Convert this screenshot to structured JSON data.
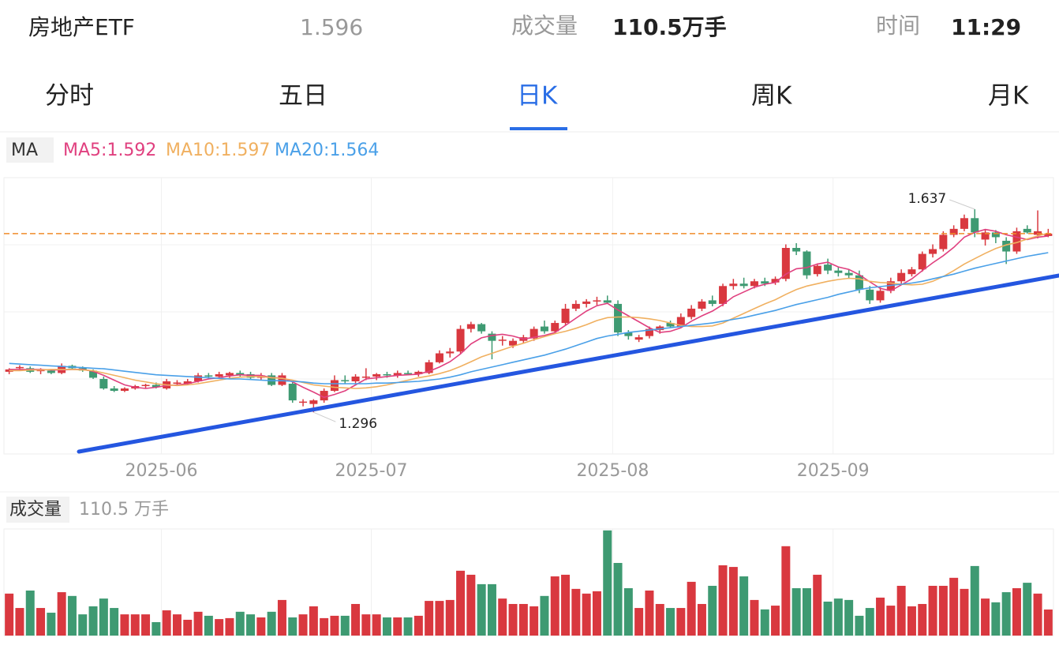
{
  "header": {
    "name": "房地产ETF",
    "label_volume": "成交量",
    "volume": "110.5万手",
    "label_time": "时间",
    "time": "11:29"
  },
  "tabs": {
    "items": [
      "分时",
      "五日",
      "日K",
      "周K",
      "月K"
    ],
    "active": 2
  },
  "chart_data": {
    "type": "candlestick",
    "ma_label": "MA",
    "xlim": [
      -0.5,
      99.5
    ],
    "xticks": [
      {
        "value": 14.5,
        "label": "2025-06"
      },
      {
        "value": 34.5,
        "label": "2025-07"
      },
      {
        "value": 57.5,
        "label": "2025-08"
      },
      {
        "value": 78.5,
        "label": "2025-09"
      }
    ],
    "ylim": [
      1.226,
      1.69
    ],
    "current_price": 1.596,
    "up_color": "#d9383f",
    "down_color": "#3e9a72",
    "price_line_color": "#f08c2a",
    "open": [
      1.364,
      1.37,
      1.37,
      1.365,
      1.366,
      1.362,
      1.374,
      1.37,
      1.366,
      1.352,
      1.336,
      1.332,
      1.336,
      1.34,
      1.342,
      1.336,
      1.344,
      1.344,
      1.348,
      1.358,
      1.356,
      1.358,
      1.362,
      1.36,
      1.354,
      1.358,
      1.342,
      1.344,
      1.312,
      1.31,
      1.316,
      1.332,
      1.35,
      1.348,
      1.354,
      1.356,
      1.36,
      1.358,
      1.362,
      1.36,
      1.362,
      1.38,
      1.395,
      1.398,
      1.436,
      1.444,
      1.428,
      1.416,
      1.408,
      1.416,
      1.42,
      1.44,
      1.432,
      1.446,
      1.47,
      1.478,
      1.482,
      1.484,
      1.478,
      1.43,
      1.418,
      1.424,
      1.434,
      1.446,
      1.44,
      1.456,
      1.47,
      1.484,
      1.478,
      1.508,
      1.512,
      1.508,
      1.516,
      1.514,
      1.52,
      1.572,
      1.566,
      1.528,
      1.544,
      1.534,
      1.53,
      1.526,
      1.502,
      1.484,
      1.5,
      1.516,
      1.528,
      1.536,
      1.562,
      1.57,
      1.594,
      1.604,
      1.622,
      1.586,
      1.598,
      1.584,
      1.566,
      1.604,
      1.594,
      1.592
    ],
    "high": [
      1.37,
      1.375,
      1.373,
      1.37,
      1.368,
      1.378,
      1.376,
      1.373,
      1.368,
      1.356,
      1.34,
      1.338,
      1.342,
      1.344,
      1.346,
      1.352,
      1.35,
      1.352,
      1.362,
      1.362,
      1.364,
      1.364,
      1.366,
      1.364,
      1.362,
      1.362,
      1.362,
      1.348,
      1.318,
      1.318,
      1.336,
      1.358,
      1.358,
      1.36,
      1.37,
      1.362,
      1.364,
      1.366,
      1.366,
      1.366,
      1.384,
      1.4,
      1.404,
      1.442,
      1.448,
      1.446,
      1.432,
      1.424,
      1.42,
      1.426,
      1.44,
      1.45,
      1.45,
      1.478,
      1.484,
      1.486,
      1.49,
      1.492,
      1.484,
      1.434,
      1.426,
      1.44,
      1.442,
      1.45,
      1.462,
      1.476,
      1.486,
      1.492,
      1.512,
      1.52,
      1.522,
      1.52,
      1.522,
      1.524,
      1.578,
      1.58,
      1.568,
      1.546,
      1.554,
      1.54,
      1.536,
      1.534,
      1.508,
      1.506,
      1.522,
      1.536,
      1.54,
      1.566,
      1.578,
      1.6,
      1.61,
      1.628,
      1.637,
      1.602,
      1.602,
      1.59,
      1.606,
      1.61,
      1.635,
      1.604
    ],
    "low": [
      1.36,
      1.366,
      1.362,
      1.36,
      1.36,
      1.36,
      1.368,
      1.364,
      1.352,
      1.334,
      1.33,
      1.33,
      1.334,
      1.336,
      1.336,
      1.334,
      1.34,
      1.342,
      1.346,
      1.352,
      1.352,
      1.354,
      1.356,
      1.352,
      1.35,
      1.34,
      1.34,
      1.312,
      1.306,
      1.296,
      1.312,
      1.33,
      1.344,
      1.344,
      1.35,
      1.35,
      1.354,
      1.354,
      1.358,
      1.356,
      1.36,
      1.378,
      1.388,
      1.394,
      1.43,
      1.428,
      1.385,
      1.408,
      1.404,
      1.412,
      1.416,
      1.428,
      1.428,
      1.442,
      1.466,
      1.472,
      1.476,
      1.478,
      1.424,
      1.418,
      1.414,
      1.42,
      1.428,
      1.438,
      1.438,
      1.452,
      1.466,
      1.474,
      1.474,
      1.502,
      1.504,
      1.504,
      1.508,
      1.51,
      1.516,
      1.56,
      1.52,
      1.524,
      1.528,
      1.524,
      1.52,
      1.496,
      1.478,
      1.48,
      1.496,
      1.512,
      1.524,
      1.532,
      1.556,
      1.566,
      1.59,
      1.6,
      1.59,
      1.576,
      1.58,
      1.545,
      1.562,
      1.596,
      1.588,
      1.59
    ],
    "close": [
      1.368,
      1.372,
      1.364,
      1.367,
      1.362,
      1.374,
      1.37,
      1.366,
      1.354,
      1.336,
      1.332,
      1.336,
      1.34,
      1.342,
      1.338,
      1.348,
      1.346,
      1.348,
      1.358,
      1.356,
      1.36,
      1.362,
      1.358,
      1.354,
      1.358,
      1.342,
      1.358,
      1.316,
      1.314,
      1.316,
      1.332,
      1.35,
      1.348,
      1.356,
      1.356,
      1.36,
      1.358,
      1.362,
      1.36,
      1.364,
      1.38,
      1.395,
      1.398,
      1.436,
      1.444,
      1.432,
      1.416,
      1.418,
      1.416,
      1.422,
      1.436,
      1.432,
      1.446,
      1.47,
      1.478,
      1.482,
      1.484,
      1.48,
      1.43,
      1.424,
      1.422,
      1.436,
      1.44,
      1.44,
      1.456,
      1.47,
      1.482,
      1.478,
      1.508,
      1.512,
      1.508,
      1.516,
      1.512,
      1.52,
      1.572,
      1.566,
      1.526,
      1.542,
      1.534,
      1.53,
      1.526,
      1.502,
      1.484,
      1.5,
      1.516,
      1.53,
      1.536,
      1.562,
      1.57,
      1.594,
      1.604,
      1.622,
      1.598,
      1.598,
      1.59,
      1.566,
      1.6,
      1.598,
      1.6,
      1.596
    ],
    "ma": [
      {
        "name": "MA5:1.592",
        "color": "#e0407f",
        "values": [
          1.368,
          1.368,
          1.368,
          1.368,
          1.367,
          1.367,
          1.368,
          1.368,
          1.365,
          1.358,
          1.35,
          1.342,
          1.338,
          1.336,
          1.338,
          1.341,
          1.342,
          1.344,
          1.348,
          1.352,
          1.354,
          1.357,
          1.359,
          1.358,
          1.358,
          1.354,
          1.354,
          1.347,
          1.338,
          1.33,
          1.321,
          1.326,
          1.332,
          1.342,
          1.352,
          1.354,
          1.356,
          1.358,
          1.359,
          1.36,
          1.365,
          1.372,
          1.381,
          1.394,
          1.411,
          1.421,
          1.425,
          1.427,
          1.424,
          1.419,
          1.422,
          1.425,
          1.43,
          1.442,
          1.454,
          1.466,
          1.475,
          1.479,
          1.468,
          1.458,
          1.448,
          1.438,
          1.43,
          1.432,
          1.438,
          1.449,
          1.458,
          1.466,
          1.477,
          1.49,
          1.498,
          1.506,
          1.511,
          1.514,
          1.528,
          1.537,
          1.539,
          1.545,
          1.548,
          1.54,
          1.536,
          1.527,
          1.515,
          1.504,
          1.5,
          1.51,
          1.52,
          1.534,
          1.547,
          1.559,
          1.573,
          1.59,
          1.598,
          1.603,
          1.6,
          1.594,
          1.59,
          1.586,
          1.59,
          1.592
        ]
      },
      {
        "name": "MA10:1.597",
        "color": "#f0b060",
        "values": [
          1.366,
          1.366,
          1.367,
          1.367,
          1.368,
          1.368,
          1.368,
          1.367,
          1.366,
          1.362,
          1.358,
          1.354,
          1.35,
          1.347,
          1.344,
          1.342,
          1.341,
          1.342,
          1.344,
          1.347,
          1.35,
          1.353,
          1.355,
          1.356,
          1.356,
          1.354,
          1.353,
          1.35,
          1.346,
          1.342,
          1.34,
          1.338,
          1.337,
          1.336,
          1.337,
          1.339,
          1.342,
          1.346,
          1.35,
          1.354,
          1.357,
          1.361,
          1.366,
          1.373,
          1.381,
          1.389,
          1.395,
          1.401,
          1.407,
          1.412,
          1.418,
          1.423,
          1.428,
          1.432,
          1.437,
          1.443,
          1.45,
          1.455,
          1.456,
          1.456,
          1.455,
          1.453,
          1.45,
          1.446,
          1.442,
          1.44,
          1.44,
          1.441,
          1.446,
          1.454,
          1.462,
          1.47,
          1.478,
          1.485,
          1.494,
          1.502,
          1.508,
          1.512,
          1.516,
          1.519,
          1.521,
          1.52,
          1.516,
          1.514,
          1.513,
          1.511,
          1.51,
          1.511,
          1.516,
          1.524,
          1.534,
          1.545,
          1.554,
          1.563,
          1.571,
          1.577,
          1.581,
          1.587,
          1.592,
          1.597
        ]
      },
      {
        "name": "MA20:1.564",
        "color": "#4aa0e8",
        "values": [
          1.378,
          1.377,
          1.376,
          1.375,
          1.374,
          1.373,
          1.372,
          1.371,
          1.37,
          1.369,
          1.367,
          1.365,
          1.363,
          1.361,
          1.359,
          1.358,
          1.357,
          1.356,
          1.355,
          1.354,
          1.353,
          1.352,
          1.352,
          1.351,
          1.35,
          1.349,
          1.349,
          1.348,
          1.347,
          1.345,
          1.344,
          1.344,
          1.344,
          1.344,
          1.344,
          1.345,
          1.345,
          1.346,
          1.347,
          1.348,
          1.35,
          1.352,
          1.355,
          1.359,
          1.364,
          1.368,
          1.372,
          1.376,
          1.38,
          1.384,
          1.388,
          1.392,
          1.397,
          1.402,
          1.408,
          1.414,
          1.42,
          1.424,
          1.427,
          1.43,
          1.432,
          1.434,
          1.436,
          1.438,
          1.44,
          1.442,
          1.444,
          1.446,
          1.449,
          1.452,
          1.455,
          1.459,
          1.463,
          1.467,
          1.472,
          1.477,
          1.481,
          1.485,
          1.489,
          1.494,
          1.498,
          1.502,
          1.505,
          1.507,
          1.509,
          1.511,
          1.513,
          1.516,
          1.52,
          1.524,
          1.528,
          1.533,
          1.538,
          1.542,
          1.546,
          1.55,
          1.554,
          1.558,
          1.561,
          1.564
        ]
      }
    ],
    "volume": {
      "label": "成交量",
      "current": "110.5 万手",
      "ylim": [
        0,
        452
      ],
      "values": [
        178,
        117,
        191,
        117,
        97,
        184,
        168,
        90,
        124,
        157,
        117,
        90,
        90,
        90,
        57,
        107,
        90,
        67,
        101,
        84,
        70,
        74,
        101,
        90,
        77,
        101,
        151,
        77,
        90,
        124,
        74,
        84,
        84,
        134,
        90,
        90,
        77,
        77,
        77,
        84,
        147,
        147,
        151,
        275,
        258,
        218,
        218,
        157,
        134,
        134,
        124,
        168,
        251,
        258,
        198,
        178,
        188,
        446,
        308,
        201,
        117,
        191,
        134,
        117,
        117,
        228,
        134,
        211,
        298,
        291,
        251,
        151,
        111,
        127,
        379,
        201,
        201,
        258,
        144,
        157,
        151,
        84,
        117,
        161,
        127,
        211,
        124,
        134,
        211,
        211,
        245,
        198,
        295,
        157,
        141,
        184,
        201,
        224,
        178,
        110.5
      ]
    }
  }
}
